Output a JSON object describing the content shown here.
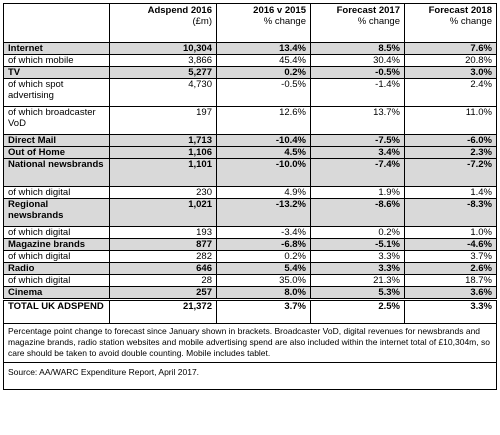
{
  "headers": {
    "col1_title": "Adspend 2016",
    "col1_sub": "(£m)",
    "col2_title": "2016 v 2015",
    "col2_sub": "% change",
    "col3_title": "Forecast 2017",
    "col3_sub": "% change",
    "col4_title": "Forecast 2018",
    "col4_sub": "% change"
  },
  "rows": [
    {
      "label": "Internet",
      "adspend": "10,304",
      "change_2016": "13.4%",
      "forecast_2017": "8.5%",
      "forecast_2018": "7.6%",
      "main": true
    },
    {
      "label": "of which mobile",
      "adspend": "3,866",
      "change_2016": "45.4%",
      "forecast_2017": "30.4%",
      "forecast_2018": "20.8%",
      "main": false
    },
    {
      "label": "TV",
      "adspend": "5,277",
      "change_2016": "0.2%",
      "forecast_2017": "-0.5%",
      "forecast_2018": "3.0%",
      "main": true
    },
    {
      "label": "of which spot advertising",
      "adspend": "4,730",
      "change_2016": "-0.5%",
      "forecast_2017": "-1.4%",
      "forecast_2018": "2.4%",
      "main": false
    },
    {
      "label": "of which broadcaster VoD",
      "adspend": "197",
      "change_2016": "12.6%",
      "forecast_2017": "13.7%",
      "forecast_2018": "11.0%",
      "main": false
    },
    {
      "label": "Direct Mail",
      "adspend": "1,713",
      "change_2016": "-10.4%",
      "forecast_2017": "-7.5%",
      "forecast_2018": "-6.0%",
      "main": true
    },
    {
      "label": "Out of Home",
      "adspend": "1,106",
      "change_2016": "4.5%",
      "forecast_2017": "3.4%",
      "forecast_2018": "2.3%",
      "main": true
    },
    {
      "label": "National newsbrands",
      "adspend": "1,101",
      "change_2016": "-10.0%",
      "forecast_2017": "-7.4%",
      "forecast_2018": "-7.2%",
      "main": true
    },
    {
      "label": "of which digital",
      "adspend": "230",
      "change_2016": "4.9%",
      "forecast_2017": "1.9%",
      "forecast_2018": "1.4%",
      "main": false
    },
    {
      "label": "Regional newsbrands",
      "adspend": "1,021",
      "change_2016": "-13.2%",
      "forecast_2017": "-8.6%",
      "forecast_2018": "-8.3%",
      "main": true
    },
    {
      "label": "of which digital",
      "adspend": "193",
      "change_2016": "-3.4%",
      "forecast_2017": "0.2%",
      "forecast_2018": "1.0%",
      "main": false
    },
    {
      "label": "Magazine brands",
      "adspend": "877",
      "change_2016": "-6.8%",
      "forecast_2017": "-5.1%",
      "forecast_2018": "-4.6%",
      "main": true
    },
    {
      "label": "of which digital",
      "adspend": "282",
      "change_2016": "0.2%",
      "forecast_2017": "3.3%",
      "forecast_2018": "3.7%",
      "main": false
    },
    {
      "label": "Radio",
      "adspend": "646",
      "change_2016": "5.4%",
      "forecast_2017": "3.3%",
      "forecast_2018": "2.6%",
      "main": true
    },
    {
      "label": "of which digital",
      "adspend": "28",
      "change_2016": "35.0%",
      "forecast_2017": "21.3%",
      "forecast_2018": "18.7%",
      "main": false
    },
    {
      "label": "Cinema",
      "adspend": "257",
      "change_2016": "8.0%",
      "forecast_2017": "5.3%",
      "forecast_2018": "3.6%",
      "main": true
    }
  ],
  "total": {
    "label": "TOTAL UK ADSPEND",
    "adspend": "21,372",
    "change_2016": "3.7%",
    "forecast_2017": "2.5%",
    "forecast_2018": "3.3%"
  },
  "note": "Percentage point change to forecast since January shown in brackets. Broadcaster VoD, digital revenues for newsbrands and magazine brands, radio station websites and mobile advertising spend are also included within the internet total of £10,304m, so care should be taken to avoid double counting. Mobile includes tablet.",
  "source": "Source: AA/WARC Expenditure Report, April 2017."
}
